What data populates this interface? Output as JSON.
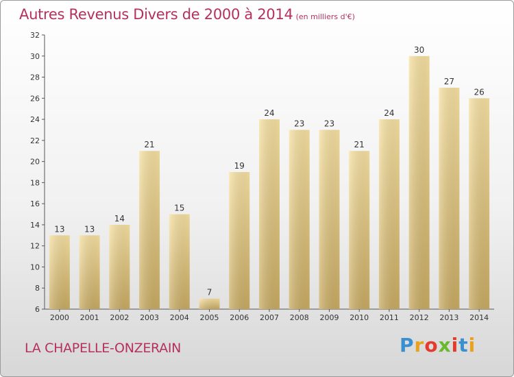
{
  "chart_data": {
    "type": "bar",
    "title": "Autres Revenus Divers de 2000 à 2014",
    "subtitle": "(en milliers d'€)",
    "categories": [
      "2000",
      "2001",
      "2002",
      "2003",
      "2004",
      "2005",
      "2006",
      "2007",
      "2008",
      "2009",
      "2010",
      "2011",
      "2012",
      "2013",
      "2014"
    ],
    "values": [
      13,
      13,
      14,
      21,
      15,
      7,
      19,
      24,
      23,
      23,
      21,
      24,
      30,
      27,
      26
    ],
    "ylim": [
      6,
      32
    ],
    "yticks": [
      6,
      8,
      10,
      12,
      14,
      16,
      18,
      20,
      22,
      24,
      26,
      28,
      30,
      32
    ],
    "xlabel": "",
    "ylabel": "",
    "grid": false,
    "bar_color": "#e3c97f"
  },
  "footer": {
    "commune": "LA CHAPELLE-ONZERAIN",
    "brand": "Proxiti"
  },
  "colors": {
    "title": "#b5305f",
    "brand": [
      "#3a8fd0",
      "#e9a21e",
      "#e33c2e",
      "#6ab82d",
      "#e33c2e",
      "#3a8fd0",
      "#e9a21e"
    ]
  }
}
